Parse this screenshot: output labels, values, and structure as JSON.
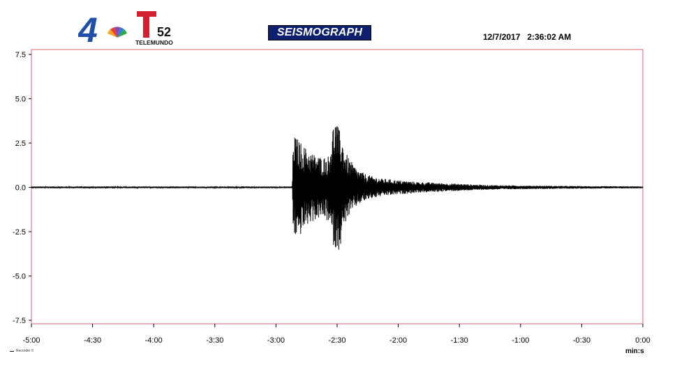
{
  "header": {
    "title": "SEISMOGRAPH",
    "timestamp": "12/7/2017   2:36:02 AM",
    "logos": {
      "left_numeral": "4",
      "right_numeral": "52",
      "wordmark": "TELEMUNDO",
      "colors": {
        "numeral_blue": "#1f4fa8",
        "telemundo_red": "#d3202e"
      }
    }
  },
  "chart_data": {
    "type": "line",
    "title": "SEISMOGRAPH",
    "xlabel": "min:s",
    "ylabel": "",
    "xlim": [
      -300,
      0
    ],
    "ylim": [
      -7.5,
      7.5
    ],
    "x_ticks": [
      {
        "value": -300,
        "label": "-5:00"
      },
      {
        "value": -270,
        "label": "-4:30"
      },
      {
        "value": -240,
        "label": "-4:00"
      },
      {
        "value": -210,
        "label": "-3:30"
      },
      {
        "value": -180,
        "label": "-3:00"
      },
      {
        "value": -150,
        "label": "-2:30"
      },
      {
        "value": -120,
        "label": "-2:00"
      },
      {
        "value": -90,
        "label": "-1:30"
      },
      {
        "value": -60,
        "label": "-1:00"
      },
      {
        "value": -30,
        "label": "-0:30"
      },
      {
        "value": 0,
        "label": "0:00"
      }
    ],
    "y_ticks": [
      {
        "value": 7.5,
        "label": "7.5"
      },
      {
        "value": 5.0,
        "label": "5.0"
      },
      {
        "value": 2.5,
        "label": "2.5"
      },
      {
        "value": 0.0,
        "label": "0.0"
      },
      {
        "value": -2.5,
        "label": "-2.5"
      },
      {
        "value": -5.0,
        "label": "-5.0"
      },
      {
        "value": -7.5,
        "label": "-7.5"
      }
    ],
    "grid": false,
    "legend": {
      "position": "bottom-left",
      "entries": [
        "Recorder 0"
      ]
    },
    "series": [
      {
        "name": "Recorder 0",
        "color": "#000000",
        "envelope_x": [
          -300,
          -172,
          -171.5,
          -169,
          -166,
          -163,
          -160,
          -157,
          -154,
          -152,
          -151,
          -149.5,
          -148,
          -146,
          -144,
          -142,
          -140,
          -136,
          -132,
          -128,
          -124,
          -120,
          -115,
          -110,
          -105,
          -100,
          -95,
          -90,
          -85,
          -80,
          -75,
          -70,
          -60,
          -50,
          -40,
          -30,
          -20,
          -10,
          0
        ],
        "envelope_positive": [
          0.05,
          0.05,
          3.0,
          2.7,
          2.3,
          2.0,
          1.8,
          1.7,
          1.8,
          3.5,
          3.9,
          3.4,
          3.0,
          2.0,
          1.6,
          1.3,
          1.0,
          0.75,
          0.6,
          0.5,
          0.45,
          0.4,
          0.35,
          0.3,
          0.28,
          0.25,
          0.22,
          0.2,
          0.17,
          0.15,
          0.13,
          0.12,
          0.1,
          0.09,
          0.08,
          0.07,
          0.06,
          0.06,
          0.05
        ],
        "envelope_negative": [
          -0.05,
          -0.05,
          -2.7,
          -2.9,
          -2.3,
          -2.0,
          -1.8,
          -1.7,
          -2.0,
          -3.2,
          -3.5,
          -3.6,
          -3.2,
          -2.0,
          -1.6,
          -1.3,
          -1.0,
          -0.75,
          -0.6,
          -0.5,
          -0.45,
          -0.4,
          -0.35,
          -0.3,
          -0.28,
          -0.25,
          -0.22,
          -0.2,
          -0.17,
          -0.15,
          -0.13,
          -0.12,
          -0.1,
          -0.09,
          -0.08,
          -0.07,
          -0.06,
          -0.06,
          -0.05
        ]
      }
    ]
  }
}
